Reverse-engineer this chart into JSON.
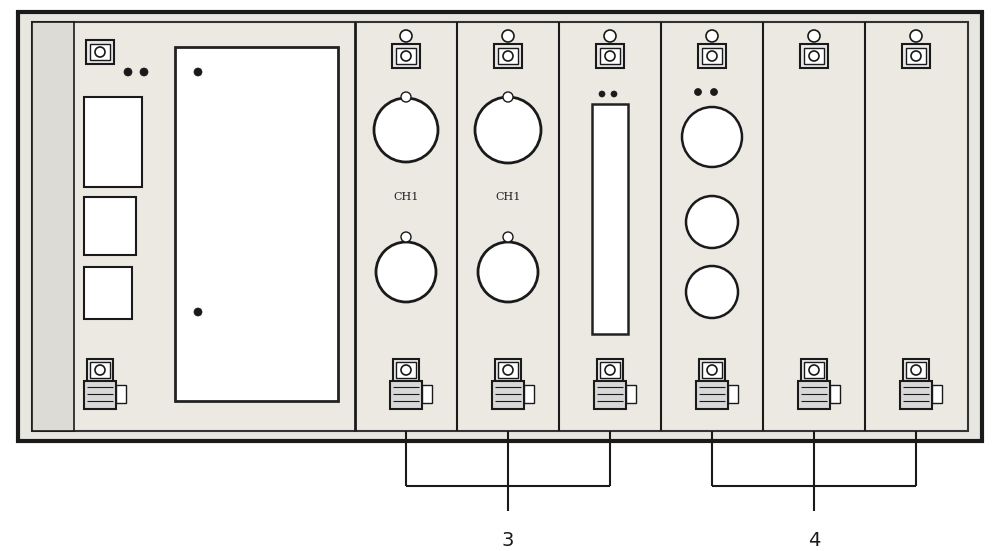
{
  "fig_width": 10.0,
  "fig_height": 5.51,
  "dpi": 100,
  "bg": "#f0eeea",
  "lc": "#1a1a1a",
  "label3": "3",
  "label4": "4"
}
